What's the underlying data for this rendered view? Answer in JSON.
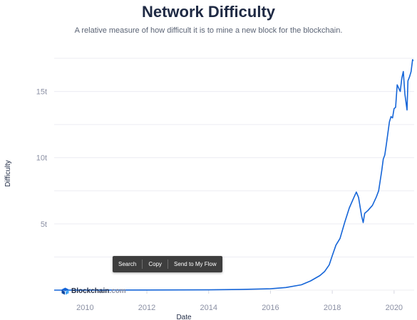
{
  "header": {
    "title": "Network Difficulty",
    "subtitle": "A relative measure of how difficult it is to mine a new block for the blockchain."
  },
  "colors": {
    "series": "#1565d8",
    "grid": "#ececf2",
    "text": "#1f2a44"
  },
  "chart_data": {
    "type": "line",
    "title": "Network Difficulty",
    "xlabel": "Date",
    "ylabel": "Difficulty",
    "xlim": [
      2009.0,
      2020.65
    ],
    "ylim": [
      0,
      17.5
    ],
    "grid": true,
    "x_ticks": [
      "2010",
      "2012",
      "2014",
      "2016",
      "2018",
      "2020"
    ],
    "y_ticks": [
      "5t",
      "10t",
      "15t"
    ],
    "series": [
      {
        "name": "",
        "unit": "t",
        "x": [
          2009.0,
          2012.0,
          2014.0,
          2015.0,
          2016.0,
          2016.5,
          2017.0,
          2017.3,
          2017.6,
          2017.75,
          2017.9,
          2018.0,
          2018.12,
          2018.25,
          2018.4,
          2018.55,
          2018.7,
          2018.78,
          2018.85,
          2018.95,
          2019.0,
          2019.05,
          2019.15,
          2019.3,
          2019.42,
          2019.5,
          2019.6,
          2019.65,
          2019.7,
          2019.75,
          2019.85,
          2019.9,
          2019.95,
          2020.0,
          2020.05,
          2020.1,
          2020.2,
          2020.25,
          2020.3,
          2020.35,
          2020.42,
          2020.45,
          2020.5,
          2020.55,
          2020.6,
          2020.62
        ],
        "y": [
          0,
          0.01,
          0.02,
          0.05,
          0.1,
          0.2,
          0.4,
          0.7,
          1.1,
          1.4,
          1.9,
          2.6,
          3.4,
          3.9,
          5.1,
          6.2,
          7.0,
          7.4,
          7.0,
          5.6,
          5.1,
          5.8,
          6.0,
          6.4,
          7.0,
          7.5,
          9.0,
          9.9,
          10.2,
          11.0,
          12.7,
          13.1,
          13.0,
          13.7,
          13.8,
          15.5,
          15.0,
          16.0,
          16.5,
          14.8,
          13.6,
          15.8,
          16.1,
          16.5,
          17.4,
          17.3
        ]
      }
    ]
  },
  "context_menu": {
    "items": [
      "Search",
      "Copy",
      "Send to My Flow"
    ]
  },
  "watermark": {
    "brand": "Blockchain",
    "suffix": ".com"
  }
}
